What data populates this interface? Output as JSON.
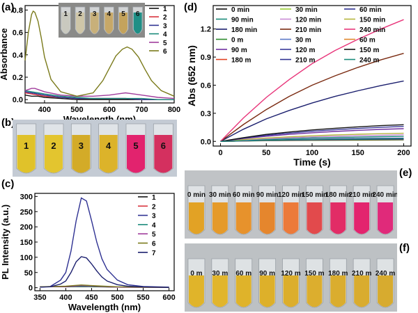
{
  "labels": {
    "a": "(a)",
    "b": "(b)",
    "c": "(c)",
    "d": "(d)",
    "e": "(e)",
    "f": "(f)"
  },
  "chart_data": [
    {
      "id": "a",
      "type": "line",
      "xlabel": "Wavelength (nm)",
      "ylabel": "Absorbance",
      "xlim": [
        340,
        800
      ],
      "ylim": [
        -0.03,
        0.84
      ],
      "xticks": [
        400,
        500,
        600,
        700,
        800
      ],
      "yticks": [
        0.0,
        0.2,
        0.4,
        0.6,
        0.8
      ],
      "ytick_labels": [
        "0.0",
        "0.2",
        "0.4",
        "0.6",
        "0.8"
      ],
      "legend_position": "top-right",
      "series": [
        {
          "name": "1",
          "color": "#111111",
          "x": [
            340,
            360,
            380,
            400,
            450,
            500,
            550,
            600,
            650,
            700,
            750,
            800
          ],
          "y": [
            0.04,
            0.03,
            0.03,
            0.02,
            0.01,
            0.0,
            0.0,
            0.0,
            0.0,
            0.0,
            0.0,
            0.0
          ]
        },
        {
          "name": "2",
          "color": "#d8323c",
          "x": [
            340,
            360,
            380,
            400,
            450,
            500,
            550,
            600,
            650,
            700,
            750,
            800
          ],
          "y": [
            0.06,
            0.05,
            0.04,
            0.03,
            0.02,
            0.01,
            0.01,
            0.01,
            0.01,
            0.0,
            0.0,
            0.0
          ]
        },
        {
          "name": "3",
          "color": "#2e3192",
          "x": [
            340,
            360,
            380,
            400,
            450,
            500,
            550,
            600,
            650,
            700,
            750,
            800
          ],
          "y": [
            0.07,
            0.06,
            0.05,
            0.04,
            0.02,
            0.01,
            0.01,
            0.01,
            0.01,
            0.0,
            0.0,
            0.0
          ]
        },
        {
          "name": "4",
          "color": "#1a8a7a",
          "x": [
            340,
            360,
            380,
            400,
            450,
            500,
            550,
            600,
            650,
            700,
            750,
            800
          ],
          "y": [
            0.08,
            0.07,
            0.06,
            0.05,
            0.03,
            0.02,
            0.01,
            0.01,
            0.01,
            0.01,
            0.0,
            0.0
          ]
        },
        {
          "name": "5",
          "color": "#a03c9c",
          "x": [
            340,
            350,
            360,
            370,
            380,
            400,
            450,
            500,
            550,
            600,
            625,
            650,
            675,
            700,
            750,
            800
          ],
          "y": [
            0.08,
            0.09,
            0.1,
            0.1,
            0.09,
            0.07,
            0.04,
            0.03,
            0.03,
            0.04,
            0.05,
            0.06,
            0.05,
            0.04,
            0.02,
            0.01
          ]
        },
        {
          "name": "6",
          "color": "#7a7a1a",
          "x": [
            340,
            350,
            360,
            365,
            370,
            380,
            390,
            400,
            420,
            450,
            500,
            550,
            580,
            600,
            620,
            640,
            655,
            670,
            690,
            710,
            730,
            760,
            800
          ],
          "y": [
            0.35,
            0.6,
            0.76,
            0.79,
            0.78,
            0.7,
            0.55,
            0.38,
            0.18,
            0.07,
            0.03,
            0.06,
            0.17,
            0.28,
            0.39,
            0.45,
            0.47,
            0.45,
            0.38,
            0.27,
            0.17,
            0.08,
            0.03
          ]
        }
      ]
    },
    {
      "id": "c",
      "type": "line",
      "xlabel": "Wavelength (nm)",
      "ylabel": "PL Intensity (a.u.)",
      "xlim": [
        340,
        610
      ],
      "ylim": [
        -10,
        310
      ],
      "xticks": [
        350,
        400,
        450,
        500,
        550,
        600
      ],
      "yticks": [
        0,
        50,
        100,
        150,
        200,
        250,
        300
      ],
      "legend_position": "top-right",
      "series": [
        {
          "name": "1",
          "color": "#111111",
          "x": [
            350,
            400,
            430,
            460,
            500,
            600
          ],
          "y": [
            3,
            3,
            4,
            3,
            2,
            1
          ]
        },
        {
          "name": "2",
          "color": "#d8323c",
          "x": [
            350,
            400,
            430,
            460,
            500,
            600
          ],
          "y": [
            3,
            4,
            6,
            4,
            2,
            1
          ]
        },
        {
          "name": "3",
          "color": "#2e3192",
          "x": [
            350,
            370,
            390,
            400,
            410,
            420,
            430,
            440,
            450,
            460,
            470,
            480,
            500,
            520,
            550,
            600
          ],
          "y": [
            2,
            4,
            25,
            50,
            120,
            220,
            295,
            285,
            220,
            150,
            95,
            60,
            25,
            10,
            4,
            2
          ]
        },
        {
          "name": "4",
          "color": "#1a8a7a",
          "x": [
            350,
            400,
            430,
            460,
            500,
            600
          ],
          "y": [
            3,
            4,
            5,
            4,
            2,
            1
          ]
        },
        {
          "name": "5",
          "color": "#a03c9c",
          "x": [
            350,
            400,
            430,
            460,
            500,
            600
          ],
          "y": [
            3,
            4,
            7,
            5,
            2,
            1
          ]
        },
        {
          "name": "6",
          "color": "#7a7a1a",
          "x": [
            350,
            400,
            430,
            460,
            500,
            600
          ],
          "y": [
            3,
            5,
            9,
            6,
            3,
            1
          ]
        },
        {
          "name": "7",
          "color": "#1b1f6e",
          "x": [
            350,
            370,
            390,
            400,
            410,
            420,
            430,
            440,
            450,
            460,
            470,
            480,
            500,
            520,
            550,
            600
          ],
          "y": [
            2,
            3,
            12,
            22,
            50,
            85,
            102,
            98,
            78,
            55,
            35,
            22,
            10,
            5,
            3,
            1
          ]
        }
      ]
    },
    {
      "id": "d",
      "type": "line",
      "xlabel": "Time (s)",
      "ylabel": "Abs (652 nm)",
      "xlim": [
        -8,
        208
      ],
      "ylim": [
        -0.05,
        1.45
      ],
      "xticks": [
        0,
        50,
        100,
        150,
        200
      ],
      "yticks": [
        0.0,
        0.3,
        0.6,
        0.9,
        1.2
      ],
      "ytick_labels": [
        "0.0",
        "0.3",
        "0.6",
        "0.9",
        "1.2"
      ],
      "legend_position": "top, 3 columns",
      "x": [
        0,
        25,
        50,
        75,
        100,
        125,
        150,
        175,
        200
      ],
      "series": [
        {
          "name": "0 min",
          "color": "#111111",
          "y": [
            0,
            0.006,
            0.01,
            0.013,
            0.016,
            0.018,
            0.02,
            0.021,
            0.022
          ]
        },
        {
          "name": "30 min",
          "color": "#9acd32",
          "y": [
            0,
            0.006,
            0.011,
            0.015,
            0.019,
            0.022,
            0.024,
            0.026,
            0.028
          ]
        },
        {
          "name": "60 min",
          "color": "#2e3192",
          "y": [
            0,
            0.008,
            0.014,
            0.019,
            0.023,
            0.027,
            0.03,
            0.032,
            0.034
          ]
        },
        {
          "name": "90 min",
          "color": "#1a8a7a",
          "y": [
            0,
            0.012,
            0.022,
            0.03,
            0.037,
            0.042,
            0.046,
            0.05,
            0.053
          ]
        },
        {
          "name": "120 min",
          "color": "#c98bd6",
          "y": [
            0,
            0.016,
            0.029,
            0.039,
            0.048,
            0.055,
            0.061,
            0.066,
            0.07
          ]
        },
        {
          "name": "150 min",
          "color": "#b5b53c",
          "y": [
            0,
            0.02,
            0.036,
            0.049,
            0.06,
            0.069,
            0.076,
            0.082,
            0.087
          ]
        },
        {
          "name": "180 min",
          "color": "#1b1f6e",
          "y": [
            0,
            0.13,
            0.24,
            0.33,
            0.41,
            0.48,
            0.54,
            0.595,
            0.645
          ]
        },
        {
          "name": "210 min",
          "color": "#7a2a10",
          "y": [
            0,
            0.18,
            0.34,
            0.48,
            0.6,
            0.7,
            0.79,
            0.87,
            0.94
          ]
        },
        {
          "name": "240 min",
          "color": "#e8357a",
          "y": [
            0,
            0.25,
            0.47,
            0.66,
            0.83,
            0.97,
            1.09,
            1.2,
            1.3
          ]
        },
        {
          "name": "0 m",
          "color": "#2a8a2a",
          "y": [
            0,
            0.004,
            0.007,
            0.009,
            0.011,
            0.012,
            0.013,
            0.014,
            0.015
          ]
        },
        {
          "name": "30 m",
          "color": "#5a78c8",
          "y": [
            0,
            0.005,
            0.009,
            0.012,
            0.015,
            0.017,
            0.018,
            0.019,
            0.02
          ]
        },
        {
          "name": "60 m",
          "color": "#e0862a",
          "y": [
            0,
            0.005,
            0.01,
            0.013,
            0.016,
            0.018,
            0.02,
            0.022,
            0.023
          ]
        },
        {
          "name": "90 m",
          "color": "#7030a0",
          "y": [
            0,
            0.03,
            0.055,
            0.075,
            0.092,
            0.106,
            0.118,
            0.128,
            0.136
          ]
        },
        {
          "name": "120 m",
          "color": "#3a3a9a",
          "y": [
            0,
            0.035,
            0.065,
            0.088,
            0.108,
            0.124,
            0.138,
            0.15,
            0.16
          ]
        },
        {
          "name": "150 m",
          "color": "#111111",
          "y": [
            0,
            0.04,
            0.075,
            0.1,
            0.122,
            0.14,
            0.155,
            0.168,
            0.178
          ]
        },
        {
          "name": "180 m",
          "color": "#e04020",
          "y": [
            0,
            0.005,
            0.009,
            0.012,
            0.014,
            0.016,
            0.018,
            0.019,
            0.02
          ]
        },
        {
          "name": "210 m",
          "color": "#2e3192",
          "y": [
            0,
            0.006,
            0.011,
            0.014,
            0.017,
            0.019,
            0.021,
            0.023,
            0.024
          ]
        },
        {
          "name": "240 m",
          "color": "#1a8a7a",
          "y": [
            0,
            0.007,
            0.012,
            0.016,
            0.019,
            0.022,
            0.024,
            0.026,
            0.028
          ]
        }
      ]
    }
  ],
  "photos": {
    "inset_a": {
      "labels": [
        "1",
        "2",
        "3",
        "4",
        "5",
        "6"
      ],
      "colors": [
        "#c9c9bf",
        "#cfc6a8",
        "#c8b07a",
        "#c7a868",
        "#c4a35c",
        "#1f8f86"
      ]
    },
    "b": {
      "labels": [
        "1",
        "2",
        "3",
        "4",
        "5",
        "6"
      ],
      "colors": [
        "#e0c22a",
        "#e3c52f",
        "#d3ab28",
        "#dcb32a",
        "#e2236e",
        "#d4305f"
      ]
    },
    "e": {
      "labels": [
        "0 min",
        "30 min",
        "60 min",
        "90 min",
        "120 min",
        "150 min",
        "180 min",
        "210 min",
        "240 min"
      ],
      "colors": [
        "#e2a225",
        "#e59a2a",
        "#e7922c",
        "#e5862d",
        "#ec7a3a",
        "#e24a4c",
        "#e22c66",
        "#e3246e",
        "#e02a7a"
      ]
    },
    "f": {
      "labels": [
        "0 m",
        "30 m",
        "60 m",
        "90 m",
        "120 m",
        "150 m",
        "180 m",
        "210 m",
        "240 m"
      ],
      "colors": [
        "#e0b42a",
        "#e1b52c",
        "#dfb32a",
        "#ddb02a",
        "#dcae2c",
        "#dcae2e",
        "#daad2e",
        "#d9ac2e",
        "#d7ab2f"
      ]
    }
  }
}
